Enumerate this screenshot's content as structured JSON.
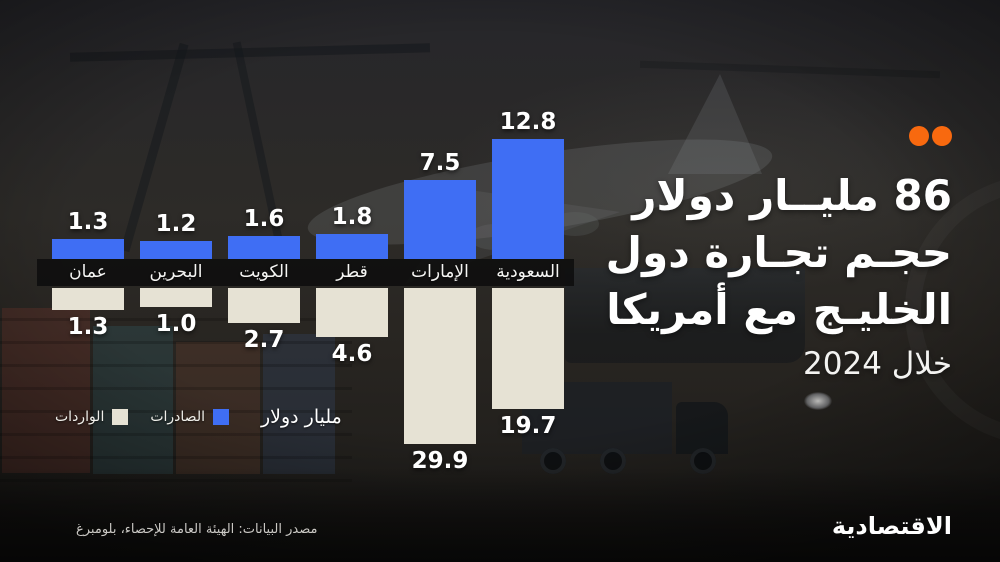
{
  "header": {
    "brand_dots_color": "#f8690f"
  },
  "title": {
    "line1": "86 مليــار دولار",
    "line2": "حجـم تجـارة دول",
    "line3": "الخليـج مع أمريكا",
    "line4": "خلال 2024"
  },
  "legend": {
    "unit_label": "مليار دولار",
    "exports_label": "الصادرات",
    "imports_label": "الواردات",
    "exports_color": "#3f6ef4",
    "imports_color": "#e6e2d4"
  },
  "footer": {
    "source": "مصدر البيانات: الهيئة العامة للإحصاء، بلومبرغ",
    "logo": "الاقتصادية"
  },
  "chart_data": {
    "type": "bar",
    "variant": "diverging-vertical",
    "title": "86 مليار دولار حجم تجارة دول الخليج مع أمريكا خلال 2024",
    "unit": "مليار دولار",
    "categories": [
      "عمان",
      "البحرين",
      "الكويت",
      "قطر",
      "الإمارات",
      "السعودية"
    ],
    "series": [
      {
        "name": "الصادرات",
        "direction": "up",
        "color": "#3f6ef4",
        "values": [
          1.3,
          1.2,
          1.6,
          1.8,
          7.5,
          12.8
        ]
      },
      {
        "name": "الواردات",
        "direction": "down",
        "color": "#e6e2d4",
        "values": [
          1.3,
          1.0,
          2.7,
          4.6,
          29.9,
          19.7
        ]
      }
    ],
    "value_labels": "outside-end",
    "legend_position": "bottom-left",
    "axes": "hidden",
    "total_trade_billion_usd": 86
  }
}
